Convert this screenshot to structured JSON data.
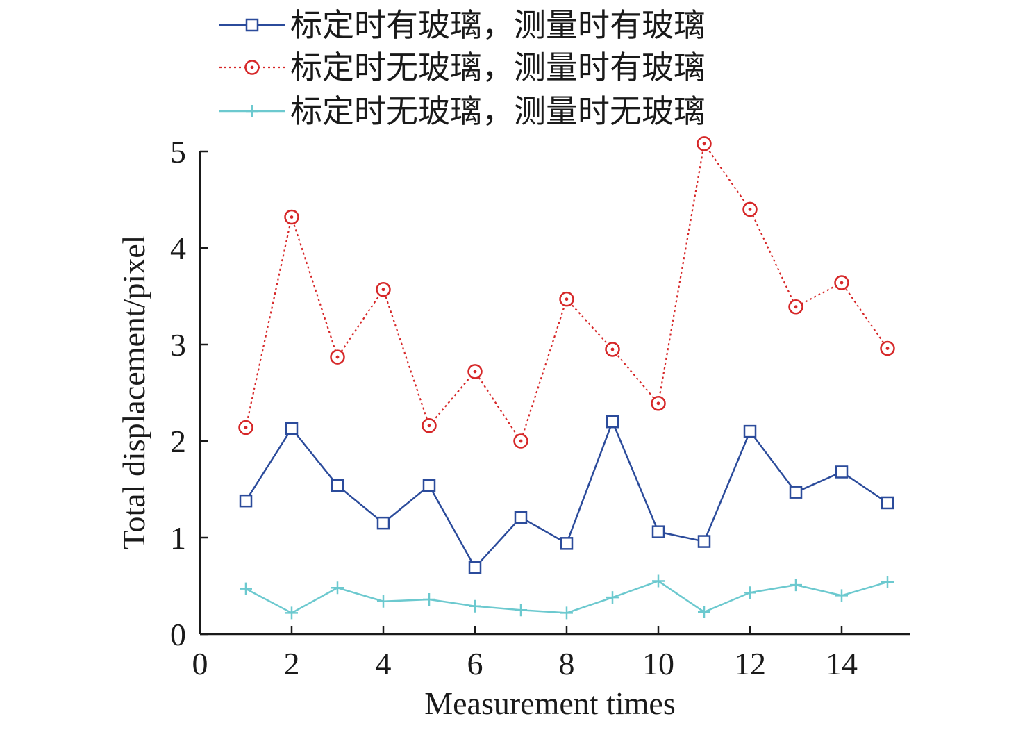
{
  "chart_data": {
    "type": "line",
    "xlabel": "Measurement times",
    "ylabel": "Total displacement/pixel",
    "xlim": [
      0,
      15.5
    ],
    "ylim": [
      0,
      5
    ],
    "x_ticks": [
      0,
      2,
      4,
      6,
      8,
      10,
      12,
      14
    ],
    "y_ticks": [
      0,
      1,
      2,
      3,
      4,
      5
    ],
    "x": [
      1,
      2,
      3,
      4,
      5,
      6,
      7,
      8,
      9,
      10,
      11,
      12,
      13,
      14,
      15
    ],
    "grid": false,
    "legend_position": "top",
    "series": [
      {
        "name": "标定时有玻璃，测量时有玻璃",
        "color": "#2b4b9b",
        "line_style": "solid",
        "marker": "square",
        "values": [
          1.38,
          2.13,
          1.54,
          1.15,
          1.54,
          0.69,
          1.21,
          0.94,
          2.2,
          1.06,
          0.96,
          2.1,
          1.47,
          1.68,
          1.36
        ]
      },
      {
        "name": "标定时无玻璃，测量时有玻璃",
        "color": "#d62728",
        "line_style": "dotted",
        "marker": "circle",
        "values": [
          2.14,
          4.32,
          2.87,
          3.57,
          2.16,
          2.72,
          2.0,
          3.47,
          2.95,
          2.39,
          5.08,
          4.4,
          3.39,
          3.64,
          2.96
        ]
      },
      {
        "name": "标定时无玻璃，测量时无玻璃",
        "color": "#6cc9cf",
        "line_style": "solid",
        "marker": "plus",
        "values": [
          0.47,
          0.22,
          0.48,
          0.34,
          0.36,
          0.29,
          0.25,
          0.22,
          0.38,
          0.55,
          0.23,
          0.43,
          0.51,
          0.4,
          0.54
        ]
      }
    ]
  }
}
